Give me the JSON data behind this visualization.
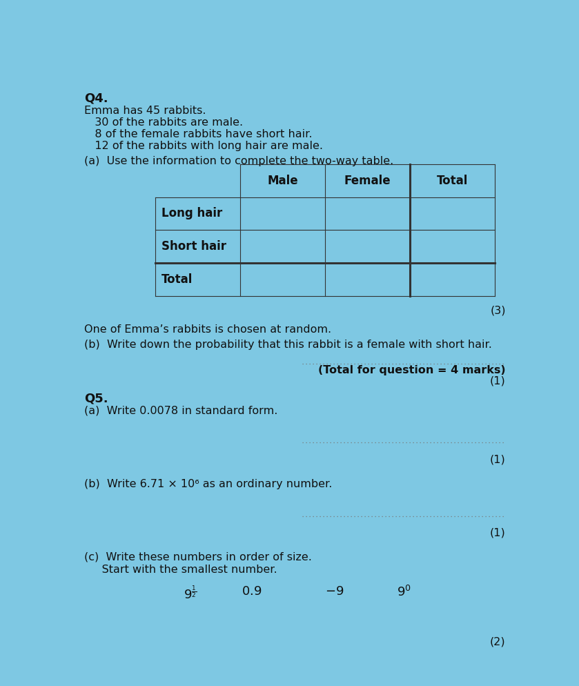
{
  "bg_color": "#7ec8e3",
  "text_color": "#1a1a1a",
  "title": "Q4.",
  "q4_lines": [
    "Emma has 45 rabbits.",
    "   30 of the rabbits are male.",
    "   8 of the female rabbits have short hair.",
    "   12 of the rabbits with long hair are male."
  ],
  "q4a_label": "(a)  Use the information to complete the two-way table.",
  "table_headers": [
    "Male",
    "Female",
    "Total"
  ],
  "table_rows": [
    "Long hair",
    "Short hair",
    "Total"
  ],
  "q4_mark_a": "(3)",
  "q4b_intro": "One of Emma’s rabbits is chosen at random.",
  "q4b_label": "(b)  Write down the probability that this rabbit is a female with short hair.",
  "q4b_mark": "(1)",
  "total_mark": "(Total for question = 4 marks)",
  "q5_title": "Q5.",
  "q5a_label": "(a)  Write 0.0078 in standard form.",
  "q5a_mark": "(1)",
  "q5b_label": "(b)  Write 6.71 × 10⁶ as an ordinary number.",
  "q5b_mark": "(1)",
  "q5c_label_1": "(c)  Write these numbers in order of size.",
  "q5c_label_2": "     Start with the smallest number.",
  "q5c_mark": "(2)",
  "dot_color": "#666666",
  "line_color": "#333333",
  "thick_lw": 2.2,
  "thin_lw": 0.8
}
